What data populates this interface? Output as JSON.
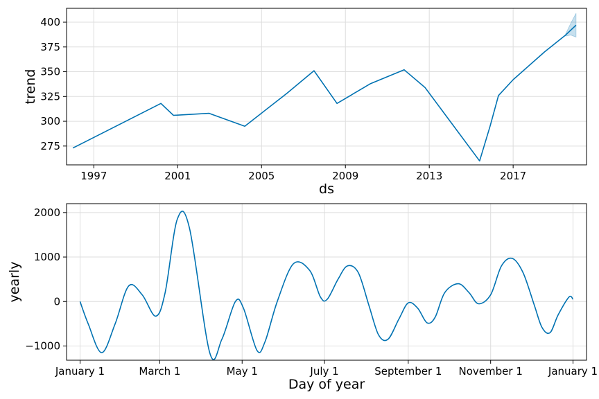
{
  "chart_data": [
    {
      "type": "line",
      "title": "",
      "xlabel": "ds",
      "ylabel": "trend",
      "xlim": [
        1995.7,
        2020.5
      ],
      "ylim": [
        256,
        414
      ],
      "grid": true,
      "line_color": "#0072B2",
      "band_color": "#0072B2",
      "x_ticks": [
        {
          "value": 1997,
          "label": "1997"
        },
        {
          "value": 2001,
          "label": "2001"
        },
        {
          "value": 2005,
          "label": "2005"
        },
        {
          "value": 2009,
          "label": "2009"
        },
        {
          "value": 2013,
          "label": "2013"
        },
        {
          "value": 2017,
          "label": "2017"
        }
      ],
      "y_ticks": [
        {
          "value": 275,
          "label": "275"
        },
        {
          "value": 300,
          "label": "300"
        },
        {
          "value": 325,
          "label": "325"
        },
        {
          "value": 350,
          "label": "350"
        },
        {
          "value": 375,
          "label": "375"
        },
        {
          "value": 400,
          "label": "400"
        }
      ],
      "series": [
        {
          "x": [
            1996.0,
            2000.2,
            2000.8,
            2002.5,
            2004.2,
            2006.2,
            2007.5,
            2008.6,
            2010.2,
            2011.8,
            2012.8,
            2015.4,
            2015.9,
            2016.3,
            2017.0,
            2018.5,
            2019.5,
            2020.0
          ],
          "y": [
            273,
            318,
            306,
            308,
            295,
            328,
            351,
            318,
            338,
            352,
            334,
            260,
            295,
            326,
            342,
            370,
            387,
            397
          ]
        }
      ],
      "uncertainty_band": {
        "x": [
          2019.5,
          2019.75,
          2020.0
        ],
        "lower": [
          386,
          387,
          385
        ],
        "upper": [
          388,
          399,
          409
        ]
      }
    },
    {
      "type": "line",
      "title": "",
      "xlabel": "Day of year",
      "ylabel": "yearly",
      "xlim": [
        -10,
        375
      ],
      "ylim": [
        -1320,
        2200
      ],
      "grid": true,
      "line_color": "#0072B2",
      "x_ticks": [
        {
          "value": 0,
          "label": "January 1"
        },
        {
          "value": 59,
          "label": "March 1"
        },
        {
          "value": 120,
          "label": "May 1"
        },
        {
          "value": 181,
          "label": "July 1"
        },
        {
          "value": 243,
          "label": "September 1"
        },
        {
          "value": 304,
          "label": "November 1"
        },
        {
          "value": 365,
          "label": "January 1"
        }
      ],
      "y_ticks": [
        {
          "value": -1000,
          "label": "−1000"
        },
        {
          "value": 0,
          "label": "0"
        },
        {
          "value": 1000,
          "label": "1000"
        },
        {
          "value": 2000,
          "label": "2000"
        }
      ],
      "series": [
        {
          "x": [
            0,
            6,
            16,
            26,
            36,
            46,
            56,
            63,
            72,
            81,
            96,
            105,
            115,
            121,
            131,
            137,
            146,
            158,
            170,
            178,
            183,
            191,
            198,
            206,
            214,
            221,
            228,
            236,
            243,
            250,
            257,
            263,
            270,
            280,
            288,
            295,
            304,
            312,
            320,
            328,
            336,
            342,
            348,
            354,
            362,
            365
          ],
          "y": [
            0,
            -500,
            -1150,
            -500,
            350,
            150,
            -330,
            200,
            1850,
            1650,
            -1150,
            -850,
            0,
            -150,
            -1100,
            -900,
            0,
            850,
            700,
            100,
            50,
            500,
            800,
            650,
            -100,
            -750,
            -850,
            -400,
            -30,
            -150,
            -480,
            -350,
            200,
            400,
            200,
            -50,
            150,
            800,
            970,
            650,
            -50,
            -580,
            -700,
            -300,
            100,
            50
          ]
        }
      ]
    }
  ]
}
